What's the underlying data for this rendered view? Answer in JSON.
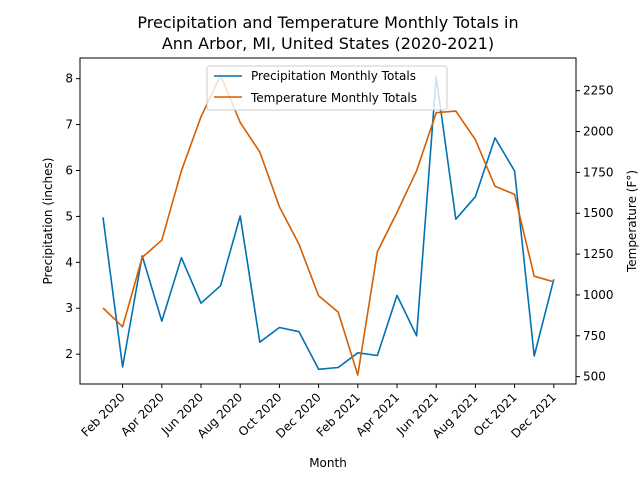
{
  "chart_data": {
    "type": "line",
    "title_line1": "Precipitation and Temperature Monthly Totals in",
    "title_line2": "Ann Arbor, MI, United States (2020-2021)",
    "xlabel": "Month",
    "ylabel_left": "Precipitation (inches)",
    "ylabel_right": "Temperature (F°)",
    "x": [
      "2020-01",
      "2020-02",
      "2020-03",
      "2020-04",
      "2020-05",
      "2020-06",
      "2020-07",
      "2020-08",
      "2020-09",
      "2020-10",
      "2020-11",
      "2020-12",
      "2021-01",
      "2021-02",
      "2021-03",
      "2021-04",
      "2021-05",
      "2021-06",
      "2021-07",
      "2021-08",
      "2021-09",
      "2021-10",
      "2021-11",
      "2021-12"
    ],
    "x_tick_labels": [
      "Feb 2020",
      "Apr 2020",
      "Jun 2020",
      "Aug 2020",
      "Oct 2020",
      "Dec 2020",
      "Feb 2021",
      "Apr 2021",
      "Jun 2021",
      "Aug 2021",
      "Oct 2021",
      "Dec 2021"
    ],
    "y_left_ticks": [
      "2",
      "3",
      "4",
      "5",
      "6",
      "7",
      "8"
    ],
    "y_right_ticks": [
      "500",
      "750",
      "1000",
      "1250",
      "1500",
      "1750",
      "2000",
      "2250"
    ],
    "ylim_left": [
      1.35,
      8.45
    ],
    "ylim_right": [
      455,
      2450
    ],
    "legend_position": "upper center",
    "series": [
      {
        "name": "Precipitation Monthly Totals",
        "axis": "left",
        "color": "#0072B2",
        "values": [
          4.98,
          1.72,
          4.14,
          2.72,
          4.1,
          3.11,
          3.49,
          5.01,
          2.26,
          2.58,
          2.49,
          1.67,
          1.71,
          2.03,
          1.97,
          3.28,
          2.4,
          8.04,
          4.94,
          5.43,
          6.71,
          5.99,
          1.96,
          3.63
        ]
      },
      {
        "name": "Temperature Monthly Totals",
        "axis": "right",
        "color": "#D55E00",
        "values": [
          920,
          805,
          1230,
          1335,
          1760,
          2090,
          2345,
          2055,
          1875,
          1540,
          1310,
          995,
          895,
          510,
          1265,
          1505,
          1760,
          2115,
          2125,
          1950,
          1665,
          1615,
          1115,
          1080
        ]
      }
    ]
  }
}
